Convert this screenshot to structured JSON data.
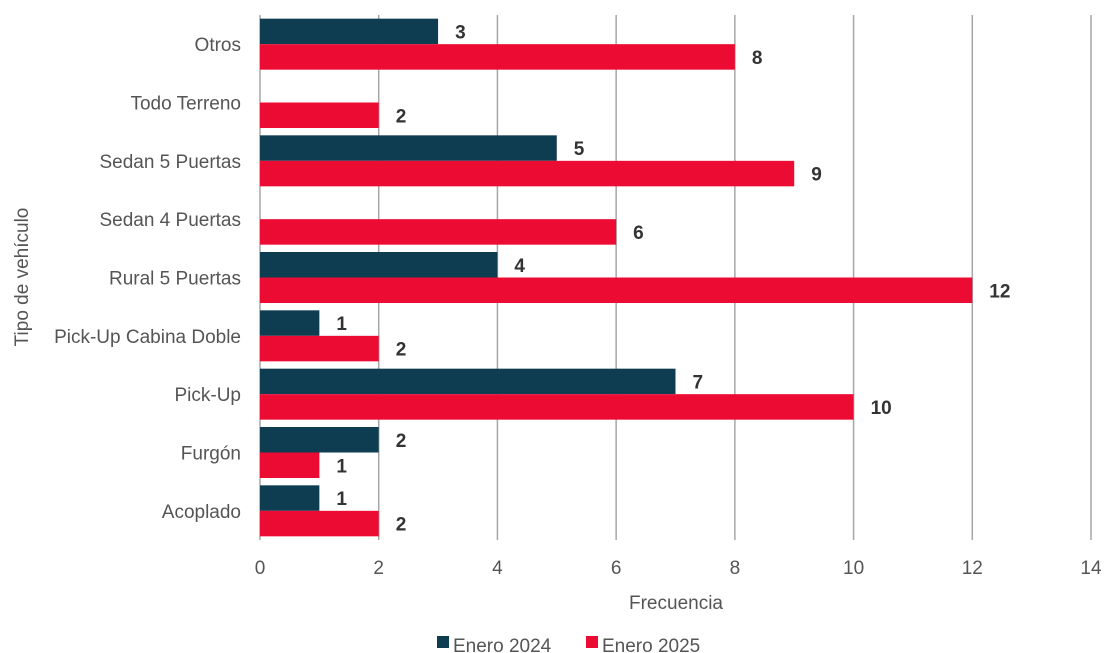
{
  "chart_data": {
    "type": "bar",
    "orientation": "horizontal",
    "categories": [
      "Otros",
      "Todo Terreno",
      "Sedan 5 Puertas",
      "Sedan 4 Puertas",
      "Rural 5 Puertas",
      "Pick-Up Cabina Doble",
      "Pick-Up",
      "Furgón",
      "Acoplado"
    ],
    "series": [
      {
        "name": "Enero 2024",
        "color": "#0e3d51",
        "values": [
          3,
          null,
          5,
          null,
          4,
          1,
          7,
          2,
          1
        ]
      },
      {
        "name": "Enero 2025",
        "color": "#ec0b33",
        "values": [
          8,
          2,
          9,
          6,
          12,
          2,
          10,
          1,
          2
        ]
      }
    ],
    "xlabel": "Frecuencia",
    "ylabel": "Tipo de vehículo",
    "xlim": [
      0,
      14
    ],
    "xticks": [
      0,
      2,
      4,
      6,
      8,
      10,
      12,
      14
    ],
    "grid": "vertical",
    "legend_position": "bottom",
    "data_labels": true
  }
}
